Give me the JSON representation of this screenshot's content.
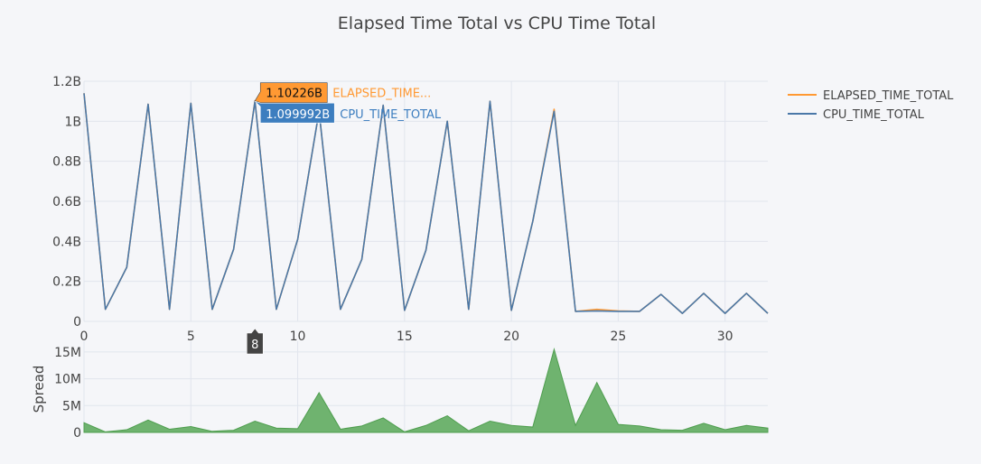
{
  "chart_data": [
    {
      "type": "line",
      "title": "Elapsed Time Total vs CPU Time Total",
      "xlabel": "",
      "ylabel": "",
      "xlim": [
        0,
        32
      ],
      "ylim": [
        0,
        1.2
      ],
      "y_unit_suffix": "B",
      "x_ticks": [
        0,
        5,
        10,
        15,
        20,
        25,
        30
      ],
      "x_tick_labels": [
        "0",
        "5",
        "10",
        "15",
        "20",
        "25",
        "30"
      ],
      "y_ticks": [
        0,
        0.2,
        0.4,
        0.6,
        0.8,
        1.0,
        1.2
      ],
      "y_tick_labels": [
        "0",
        "0.2B",
        "0.4B",
        "0.6B",
        "0.8B",
        "1B",
        "1.2B"
      ],
      "grid": true,
      "legend_position": "top-right",
      "x": [
        0,
        1,
        2,
        3,
        4,
        5,
        6,
        7,
        8,
        9,
        10,
        11,
        12,
        13,
        14,
        15,
        16,
        17,
        18,
        19,
        20,
        21,
        22,
        23,
        24,
        25,
        26,
        27,
        28,
        29,
        30,
        31,
        32
      ],
      "series": [
        {
          "name": "ELAPSED_TIME_TOTAL",
          "color": "#ff9933",
          "values": [
            1.14,
            0.06,
            0.27,
            1.085,
            0.06,
            1.09,
            0.06,
            0.36,
            1.10226,
            0.06,
            0.41,
            1.05,
            0.06,
            0.31,
            1.08,
            0.055,
            0.355,
            1.0,
            0.06,
            1.1,
            0.055,
            0.5,
            1.06,
            0.05,
            0.06,
            0.052,
            0.05,
            0.135,
            0.04,
            0.14,
            0.04,
            0.14,
            0.04
          ]
        },
        {
          "name": "CPU_TIME_TOTAL",
          "color": "#4a78a8",
          "values": [
            1.14,
            0.06,
            0.27,
            1.085,
            0.06,
            1.09,
            0.06,
            0.36,
            1.099992,
            0.06,
            0.41,
            1.05,
            0.06,
            0.31,
            1.08,
            0.055,
            0.355,
            1.0,
            0.06,
            1.1,
            0.055,
            0.5,
            1.05,
            0.05,
            0.052,
            0.05,
            0.05,
            0.135,
            0.04,
            0.14,
            0.04,
            0.14,
            0.04
          ]
        }
      ],
      "hover": {
        "x": 8,
        "x_label": "8",
        "items": [
          {
            "series": "ELAPSED_TIME_TOTAL",
            "value_label": "1.10226B",
            "name_label": "ELAPSED_TIME...",
            "color": "#ff9933"
          },
          {
            "series": "CPU_TIME_TOTAL",
            "value_label": "1.099992B",
            "name_label": "CPU_TIME_TOTAL",
            "color": "#3d7ebf"
          }
        ]
      }
    },
    {
      "type": "area",
      "title": "",
      "xlabel": "",
      "ylabel": "Spread",
      "xlim": [
        0,
        32
      ],
      "ylim": [
        0,
        17
      ],
      "y_unit_suffix": "M",
      "y_ticks": [
        0,
        5,
        10,
        15
      ],
      "y_tick_labels": [
        "0",
        "5M",
        "10M",
        "15M"
      ],
      "grid": true,
      "x": [
        0,
        1,
        2,
        3,
        4,
        5,
        6,
        7,
        8,
        9,
        10,
        11,
        12,
        13,
        14,
        15,
        16,
        17,
        18,
        19,
        20,
        21,
        22,
        23,
        24,
        25,
        26,
        27,
        28,
        29,
        30,
        31,
        32
      ],
      "series": [
        {
          "name": "Spread",
          "color": "#4f9e4f",
          "fill": "#6fb36f",
          "values": [
            1.8,
            0.1,
            0.5,
            2.3,
            0.6,
            1.1,
            0.2,
            0.4,
            2.1,
            0.8,
            0.7,
            7.4,
            0.6,
            1.2,
            2.7,
            0.1,
            1.3,
            3.1,
            0.3,
            2.1,
            1.3,
            1.0,
            15.5,
            1.3,
            9.3,
            1.5,
            1.2,
            0.5,
            0.4,
            1.7,
            0.5,
            1.3,
            0.8
          ]
        }
      ]
    }
  ]
}
